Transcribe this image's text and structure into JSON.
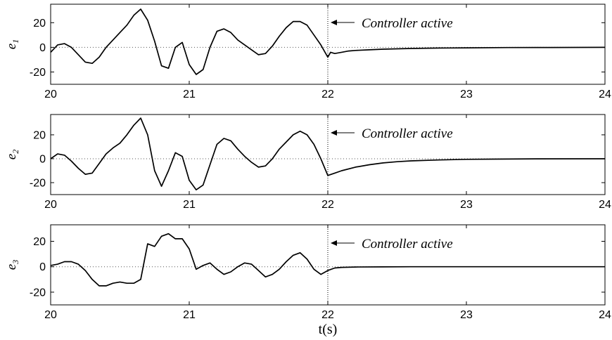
{
  "chart_data": [
    {
      "type": "line",
      "ylabel": "e",
      "ylabel_subscript": "1",
      "xlim": [
        20,
        24
      ],
      "ylim": [
        -30,
        35
      ],
      "xticks": [
        "20",
        "21",
        "22",
        "23",
        "24"
      ],
      "yticks": [
        "20",
        "0",
        "-20"
      ],
      "ytick_values": [
        20,
        0,
        -20
      ],
      "annotation": "Controller active",
      "annotation_x": 22,
      "series": [
        {
          "x": [
            20.0,
            20.05,
            20.1,
            20.15,
            20.2,
            20.25,
            20.3,
            20.35,
            20.4,
            20.45,
            20.5,
            20.55,
            20.6,
            20.65,
            20.7,
            20.75,
            20.8,
            20.85,
            20.9,
            20.95,
            21.0,
            21.05,
            21.1,
            21.15,
            21.2,
            21.25,
            21.3,
            21.35,
            21.4,
            21.45,
            21.5,
            21.55,
            21.6,
            21.65,
            21.7,
            21.75,
            21.8,
            21.85,
            21.9,
            21.95,
            22.0,
            22.02,
            22.05,
            22.1,
            22.15,
            22.2,
            22.3,
            22.4,
            22.5,
            22.6,
            22.8,
            23.0,
            23.3,
            23.6,
            24.0
          ],
          "y": [
            -4,
            2,
            3,
            0,
            -6,
            -12,
            -13,
            -8,
            0,
            6,
            12,
            18,
            26,
            31,
            22,
            5,
            -15,
            -17,
            0,
            4,
            -14,
            -22,
            -18,
            0,
            13,
            15,
            12,
            6,
            2,
            -2,
            -6,
            -5,
            1,
            9,
            16,
            21,
            21,
            18,
            10,
            2,
            -8,
            -4,
            -5,
            -4,
            -3,
            -2.5,
            -2,
            -1.5,
            -1.2,
            -0.9,
            -0.6,
            -0.4,
            -0.2,
            -0.1,
            0
          ]
        }
      ]
    },
    {
      "type": "line",
      "ylabel": "e",
      "ylabel_subscript": "2",
      "xlim": [
        20,
        24
      ],
      "ylim": [
        -30,
        37
      ],
      "xticks": [
        "20",
        "21",
        "22",
        "23",
        "24"
      ],
      "yticks": [
        "20",
        "0",
        "-20"
      ],
      "ytick_values": [
        20,
        0,
        -20
      ],
      "annotation": "Controller active",
      "annotation_x": 22,
      "series": [
        {
          "x": [
            20.0,
            20.05,
            20.1,
            20.15,
            20.2,
            20.25,
            20.3,
            20.35,
            20.4,
            20.45,
            20.5,
            20.55,
            20.6,
            20.65,
            20.7,
            20.75,
            20.8,
            20.85,
            20.9,
            20.95,
            21.0,
            21.05,
            21.1,
            21.15,
            21.2,
            21.25,
            21.3,
            21.35,
            21.4,
            21.45,
            21.5,
            21.55,
            21.6,
            21.65,
            21.7,
            21.75,
            21.8,
            21.85,
            21.9,
            21.95,
            22.0,
            22.05,
            22.1,
            22.2,
            22.3,
            22.4,
            22.5,
            22.6,
            22.8,
            23.0,
            23.2,
            23.5,
            24.0
          ],
          "y": [
            0,
            4,
            3,
            -2,
            -8,
            -13,
            -12,
            -4,
            4,
            9,
            13,
            20,
            28,
            34,
            20,
            -10,
            -23,
            -10,
            5,
            2,
            -18,
            -26,
            -22,
            -5,
            12,
            17,
            15,
            8,
            2,
            -3,
            -7,
            -6,
            0,
            8,
            14,
            20,
            23,
            20,
            12,
            0,
            -14,
            -12,
            -10,
            -7,
            -5,
            -3.5,
            -2.5,
            -1.8,
            -1,
            -0.5,
            -0.3,
            -0.1,
            0
          ]
        }
      ]
    },
    {
      "type": "line",
      "ylabel": "e",
      "ylabel_subscript": "3",
      "xlim": [
        20,
        24
      ],
      "ylim": [
        -30,
        33
      ],
      "xticks": [
        "20",
        "21",
        "22",
        "23",
        "24"
      ],
      "yticks": [
        "20",
        "0",
        "-20"
      ],
      "ytick_values": [
        20,
        0,
        -20
      ],
      "annotation": "Controller active",
      "annotation_x": 22,
      "series": [
        {
          "x": [
            20.0,
            20.05,
            20.1,
            20.15,
            20.2,
            20.25,
            20.3,
            20.35,
            20.4,
            20.45,
            20.5,
            20.55,
            20.6,
            20.65,
            20.7,
            20.75,
            20.8,
            20.85,
            20.9,
            20.95,
            21.0,
            21.05,
            21.1,
            21.15,
            21.2,
            21.25,
            21.3,
            21.35,
            21.4,
            21.45,
            21.5,
            21.55,
            21.6,
            21.65,
            21.7,
            21.75,
            21.8,
            21.85,
            21.9,
            21.95,
            22.0,
            22.05,
            22.1,
            22.2,
            22.4,
            22.6,
            23.0,
            23.5,
            24.0
          ],
          "y": [
            1,
            2,
            4,
            4,
            2,
            -3,
            -10,
            -15,
            -15,
            -13,
            -12,
            -13,
            -13,
            -10,
            18,
            16,
            24,
            26,
            22,
            22,
            14,
            -2,
            1,
            3,
            -2,
            -6,
            -4,
            0,
            3,
            2,
            -3,
            -8,
            -6,
            -2,
            4,
            9,
            11,
            6,
            -2,
            -6,
            -3,
            -1,
            -0.5,
            -0.2,
            -0.1,
            0,
            0,
            0,
            0
          ]
        }
      ]
    }
  ],
  "xlabel": "t(s)"
}
